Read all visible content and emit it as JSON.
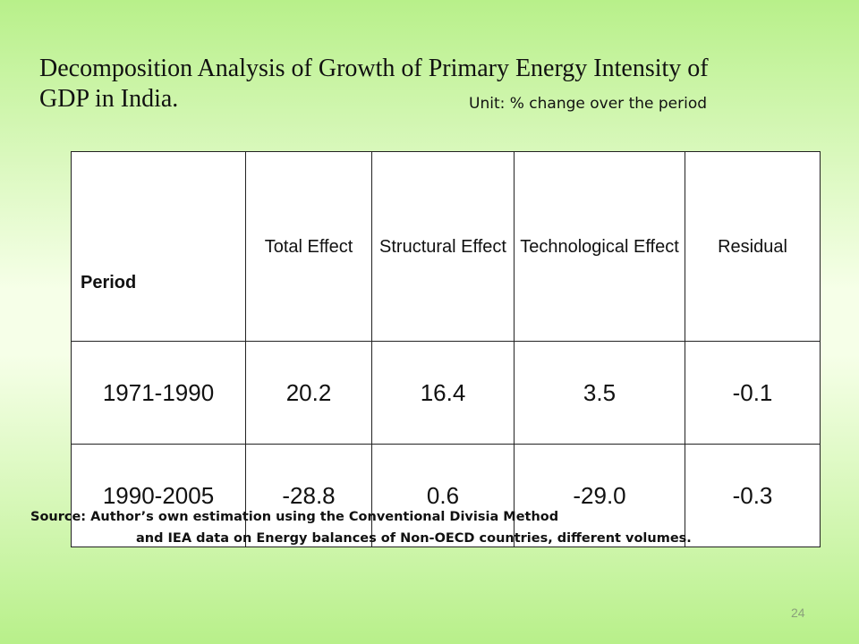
{
  "title": {
    "line1": "Decomposition Analysis of Growth of Primary Energy Intensity of",
    "line2": "GDP in India."
  },
  "unit": "Unit: % change over the period",
  "table": {
    "headers": [
      "Period",
      "Total Effect",
      "Structural Effect",
      "Technological Effect",
      "Residual"
    ],
    "rows": [
      [
        "1971-1990",
        "20.2",
        "16.4",
        "3.5",
        "-0.1"
      ],
      [
        "1990-2005",
        "-28.8",
        "0.6",
        "-29.0",
        "-0.3"
      ]
    ]
  },
  "source": {
    "line1": "Source: Author’s own estimation using the Conventional Divisia Method",
    "line2": "and IEA data on Energy balances of Non-OECD countries, different volumes."
  },
  "page_number": "24"
}
